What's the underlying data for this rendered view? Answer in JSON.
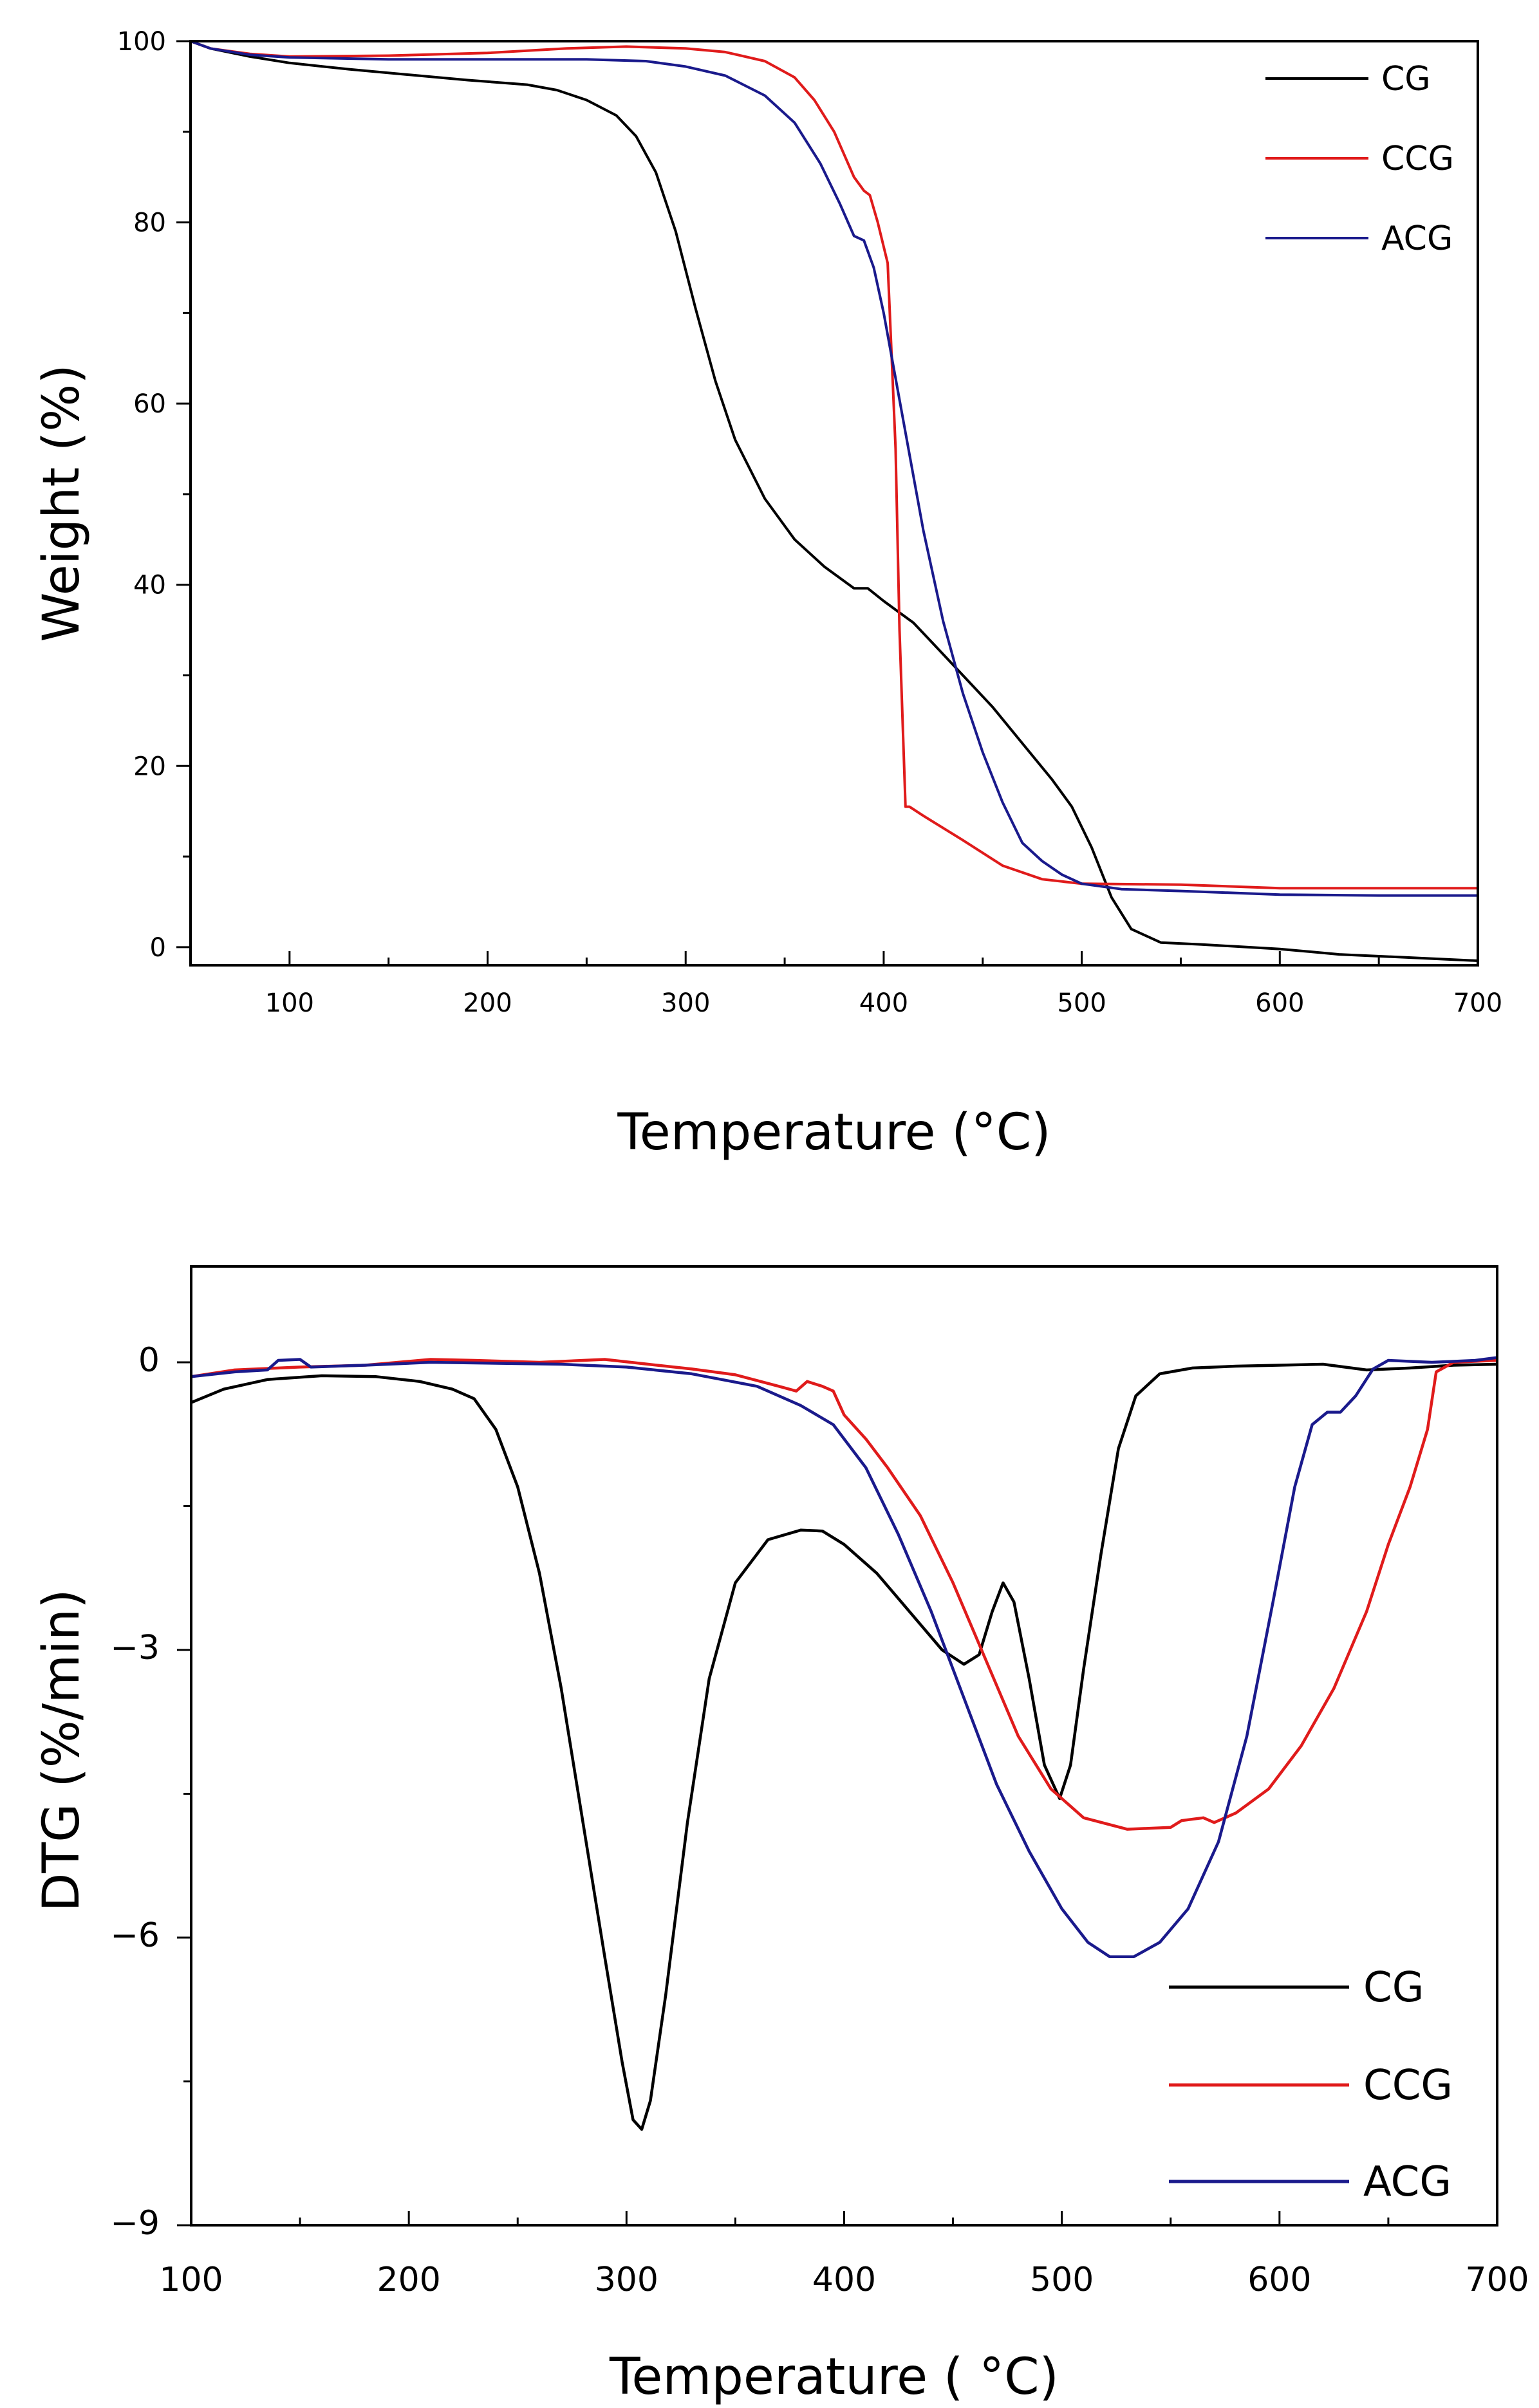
{
  "colors": {
    "CG": "#000000",
    "CCG": "#e01b1b",
    "ACG": "#1a1a8c"
  },
  "chart_data": [
    {
      "type": "line",
      "title": "",
      "xlabel": "Temperature (°C)",
      "ylabel": "Weight (%)",
      "xlim": [
        50,
        700
      ],
      "ylim": [
        -2,
        100
      ],
      "xticks": [
        100,
        200,
        300,
        400,
        500,
        600,
        700
      ],
      "yticks": [
        0,
        20,
        40,
        60,
        80,
        100
      ],
      "grid": false,
      "legend_position": "top-right",
      "series": [
        {
          "name": "CG",
          "color": "#000000",
          "points": [
            [
              50,
              100
            ],
            [
              60,
              99.2
            ],
            [
              80,
              98.3
            ],
            [
              100,
              97.6
            ],
            [
              130,
              96.9
            ],
            [
              160,
              96.3
            ],
            [
              190,
              95.7
            ],
            [
              220,
              95.2
            ],
            [
              235,
              94.6
            ],
            [
              250,
              93.5
            ],
            [
              265,
              91.8
            ],
            [
              275,
              89.5
            ],
            [
              285,
              85.5
            ],
            [
              295,
              79
            ],
            [
              305,
              70.5
            ],
            [
              315,
              62.5
            ],
            [
              325,
              56
            ],
            [
              340,
              49.5
            ],
            [
              355,
              45
            ],
            [
              370,
              42
            ],
            [
              385,
              39.6
            ],
            [
              392,
              39.6
            ],
            [
              400,
              38.2
            ],
            [
              415,
              35.8
            ],
            [
              425,
              33.5
            ],
            [
              440,
              30
            ],
            [
              455,
              26.5
            ],
            [
              470,
              22.5
            ],
            [
              485,
              18.5
            ],
            [
              495,
              15.5
            ],
            [
              505,
              11
            ],
            [
              515,
              5.5
            ],
            [
              525,
              2
            ],
            [
              540,
              0.5
            ],
            [
              560,
              0.3
            ],
            [
              600,
              -0.2
            ],
            [
              630,
              -0.8
            ],
            [
              660,
              -1.1
            ],
            [
              700,
              -1.5
            ]
          ]
        },
        {
          "name": "CCG",
          "color": "#e01b1b",
          "points": [
            [
              50,
              100
            ],
            [
              60,
              99.2
            ],
            [
              80,
              98.6
            ],
            [
              100,
              98.3
            ],
            [
              150,
              98.4
            ],
            [
              200,
              98.7
            ],
            [
              240,
              99.2
            ],
            [
              270,
              99.4
            ],
            [
              300,
              99.2
            ],
            [
              320,
              98.8
            ],
            [
              340,
              97.8
            ],
            [
              355,
              96
            ],
            [
              365,
              93.5
            ],
            [
              375,
              90
            ],
            [
              385,
              85
            ],
            [
              390,
              83.5
            ],
            [
              393,
              83
            ],
            [
              397,
              80
            ],
            [
              402,
              75.5
            ],
            [
              406,
              55
            ],
            [
              408,
              35
            ],
            [
              410,
              22
            ],
            [
              411,
              15.5
            ],
            [
              413,
              15.5
            ],
            [
              420,
              14.5
            ],
            [
              440,
              11.8
            ],
            [
              460,
              9
            ],
            [
              480,
              7.5
            ],
            [
              500,
              7
            ],
            [
              550,
              6.9
            ],
            [
              600,
              6.5
            ],
            [
              650,
              6.5
            ],
            [
              700,
              6.5
            ]
          ]
        },
        {
          "name": "ACG",
          "color": "#1a1a8c",
          "points": [
            [
              50,
              100
            ],
            [
              60,
              99.2
            ],
            [
              80,
              98.5
            ],
            [
              100,
              98.2
            ],
            [
              150,
              98
            ],
            [
              200,
              98
            ],
            [
              250,
              98
            ],
            [
              280,
              97.8
            ],
            [
              300,
              97.2
            ],
            [
              320,
              96.2
            ],
            [
              340,
              94
            ],
            [
              355,
              91
            ],
            [
              368,
              86.5
            ],
            [
              378,
              82
            ],
            [
              385,
              78.5
            ],
            [
              390,
              78
            ],
            [
              395,
              75
            ],
            [
              400,
              70
            ],
            [
              410,
              58
            ],
            [
              420,
              46
            ],
            [
              430,
              36
            ],
            [
              440,
              28
            ],
            [
              450,
              21.5
            ],
            [
              460,
              16
            ],
            [
              470,
              11.5
            ],
            [
              480,
              9.5
            ],
            [
              490,
              8
            ],
            [
              500,
              7
            ],
            [
              520,
              6.4
            ],
            [
              550,
              6.2
            ],
            [
              600,
              5.8
            ],
            [
              650,
              5.7
            ],
            [
              700,
              5.7
            ]
          ]
        }
      ]
    },
    {
      "type": "line",
      "title": "",
      "xlabel": "Temperature ( °C)",
      "ylabel": "DTG (%/min)",
      "xlim": [
        100,
        700
      ],
      "ylim": [
        -9,
        1
      ],
      "xticks": [
        100,
        200,
        300,
        400,
        500,
        600,
        700
      ],
      "yticks": [
        0,
        -3,
        -6,
        -9
      ],
      "grid": false,
      "legend_position": "bottom-right",
      "series": [
        {
          "name": "CG",
          "color": "#000000",
          "points": [
            [
              100,
              -0.42
            ],
            [
              115,
              -0.28
            ],
            [
              135,
              -0.18
            ],
            [
              160,
              -0.14
            ],
            [
              185,
              -0.15
            ],
            [
              205,
              -0.2
            ],
            [
              220,
              -0.28
            ],
            [
              230,
              -0.38
            ],
            [
              240,
              -0.7
            ],
            [
              250,
              -1.3
            ],
            [
              260,
              -2.2
            ],
            [
              270,
              -3.4
            ],
            [
              280,
              -4.8
            ],
            [
              290,
              -6.2
            ],
            [
              298,
              -7.3
            ],
            [
              303,
              -7.9
            ],
            [
              307,
              -8.0
            ],
            [
              311,
              -7.7
            ],
            [
              318,
              -6.6
            ],
            [
              328,
              -4.8
            ],
            [
              338,
              -3.3
            ],
            [
              350,
              -2.3
            ],
            [
              365,
              -1.85
            ],
            [
              380,
              -1.75
            ],
            [
              390,
              -1.76
            ],
            [
              400,
              -1.9
            ],
            [
              415,
              -2.2
            ],
            [
              430,
              -2.6
            ],
            [
              445,
              -3.0
            ],
            [
              455,
              -3.15
            ],
            [
              462,
              -3.05
            ],
            [
              468,
              -2.6
            ],
            [
              473,
              -2.3
            ],
            [
              478,
              -2.5
            ],
            [
              485,
              -3.3
            ],
            [
              492,
              -4.2
            ],
            [
              499,
              -4.55
            ],
            [
              504,
              -4.2
            ],
            [
              510,
              -3.2
            ],
            [
              518,
              -2.0
            ],
            [
              526,
              -0.9
            ],
            [
              534,
              -0.35
            ],
            [
              545,
              -0.12
            ],
            [
              560,
              -0.06
            ],
            [
              580,
              -0.04
            ],
            [
              600,
              -0.03
            ],
            [
              620,
              -0.02
            ],
            [
              640,
              -0.08
            ],
            [
              660,
              -0.06
            ],
            [
              680,
              -0.03
            ],
            [
              700,
              -0.02
            ]
          ]
        },
        {
          "name": "CCG",
          "color": "#e01b1b",
          "points": [
            [
              100,
              -0.15
            ],
            [
              120,
              -0.08
            ],
            [
              150,
              -0.05
            ],
            [
              180,
              -0.03
            ],
            [
              210,
              0.03
            ],
            [
              230,
              0.02
            ],
            [
              260,
              0.0
            ],
            [
              290,
              0.03
            ],
            [
              310,
              -0.02
            ],
            [
              330,
              -0.07
            ],
            [
              350,
              -0.13
            ],
            [
              370,
              -0.25
            ],
            [
              378,
              -0.3
            ],
            [
              383,
              -0.2
            ],
            [
              390,
              -0.25
            ],
            [
              395,
              -0.3
            ],
            [
              400,
              -0.55
            ],
            [
              410,
              -0.8
            ],
            [
              420,
              -1.1
            ],
            [
              435,
              -1.6
            ],
            [
              450,
              -2.3
            ],
            [
              465,
              -3.1
            ],
            [
              480,
              -3.9
            ],
            [
              495,
              -4.45
            ],
            [
              510,
              -4.75
            ],
            [
              530,
              -4.87
            ],
            [
              550,
              -4.85
            ],
            [
              555,
              -4.78
            ],
            [
              565,
              -4.75
            ],
            [
              570,
              -4.8
            ],
            [
              580,
              -4.7
            ],
            [
              595,
              -4.45
            ],
            [
              610,
              -4.0
            ],
            [
              625,
              -3.4
            ],
            [
              640,
              -2.6
            ],
            [
              650,
              -1.9
            ],
            [
              660,
              -1.3
            ],
            [
              668,
              -0.7
            ],
            [
              672,
              -0.1
            ],
            [
              680,
              0.0
            ],
            [
              700,
              0.02
            ]
          ]
        },
        {
          "name": "ACG",
          "color": "#1a1a8c",
          "points": [
            [
              100,
              -0.15
            ],
            [
              120,
              -0.1
            ],
            [
              135,
              -0.08
            ],
            [
              140,
              0.02
            ],
            [
              150,
              0.03
            ],
            [
              155,
              -0.05
            ],
            [
              180,
              -0.03
            ],
            [
              210,
              0.0
            ],
            [
              240,
              -0.01
            ],
            [
              270,
              -0.02
            ],
            [
              300,
              -0.05
            ],
            [
              330,
              -0.12
            ],
            [
              360,
              -0.25
            ],
            [
              380,
              -0.45
            ],
            [
              395,
              -0.65
            ],
            [
              410,
              -1.1
            ],
            [
              425,
              -1.8
            ],
            [
              440,
              -2.6
            ],
            [
              455,
              -3.5
            ],
            [
              470,
              -4.4
            ],
            [
              485,
              -5.1
            ],
            [
              500,
              -5.7
            ],
            [
              512,
              -6.05
            ],
            [
              522,
              -6.2
            ],
            [
              533,
              -6.2
            ],
            [
              545,
              -6.05
            ],
            [
              558,
              -5.7
            ],
            [
              572,
              -5.0
            ],
            [
              585,
              -3.9
            ],
            [
              597,
              -2.5
            ],
            [
              607,
              -1.3
            ],
            [
              615,
              -0.65
            ],
            [
              622,
              -0.52
            ],
            [
              628,
              -0.52
            ],
            [
              635,
              -0.35
            ],
            [
              643,
              -0.07
            ],
            [
              650,
              0.02
            ],
            [
              670,
              0.0
            ],
            [
              690,
              0.02
            ],
            [
              700,
              0.05
            ]
          ]
        }
      ]
    }
  ]
}
